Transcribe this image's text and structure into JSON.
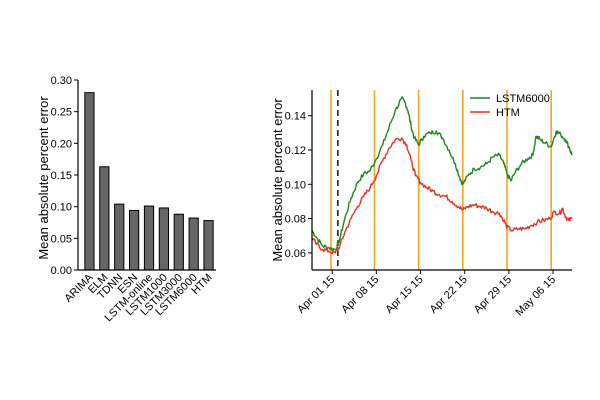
{
  "chart_data": [
    {
      "type": "bar",
      "title": "",
      "xlabel": "",
      "ylabel": "Mean absolute percent error",
      "ylim": [
        0,
        0.3
      ],
      "yticks": [
        "0.00",
        "0.05",
        "0.10",
        "0.15",
        "0.20",
        "0.25",
        "0.30"
      ],
      "yticks_values": [
        0,
        0.05,
        0.1,
        0.15,
        0.2,
        0.25,
        0.3
      ],
      "categories": [
        "ARIMA",
        "ELM",
        "TDNN",
        "ESN",
        "LSTM-online",
        "LSTM1000",
        "LSTM3000",
        "LSTM6000",
        "HTM"
      ],
      "values": [
        0.28,
        0.163,
        0.104,
        0.094,
        0.101,
        0.098,
        0.088,
        0.082,
        0.078
      ],
      "bar_color": "#666666"
    },
    {
      "type": "line",
      "title": "",
      "xlabel": "",
      "ylabel": "Mean absolute percent error",
      "ylim": [
        0.05,
        0.155
      ],
      "yticks": [
        "0.06",
        "0.08",
        "0.10",
        "0.12",
        "0.14"
      ],
      "yticks_values": [
        0.06,
        0.08,
        0.1,
        0.12,
        0.14
      ],
      "xlim": [
        -3.2,
        38
      ],
      "xticks": [
        "Apr 01 15",
        "Apr 08 15",
        "Apr 15 15",
        "Apr 22 15",
        "Apr 29 15",
        "May 06 15"
      ],
      "xticks_values": [
        0,
        7,
        14,
        21,
        28,
        35
      ],
      "legend_position": "top-right",
      "vlines_solid_days": [
        -0.2,
        6.7,
        13.7,
        20.7,
        27.7,
        34.7
      ],
      "vline_dashed_day": 0.9,
      "vline_solid_color": "#f5a623",
      "vline_dashed_color": "#000000",
      "series": [
        {
          "name": "LSTM6000",
          "color": "#1a8a1a",
          "points": [
            [
              -3.2,
              0.073
            ],
            [
              -2.5,
              0.069
            ],
            [
              -1.5,
              0.064
            ],
            [
              -0.5,
              0.063
            ],
            [
              0.5,
              0.062
            ],
            [
              1.2,
              0.068
            ],
            [
              2,
              0.08
            ],
            [
              3,
              0.092
            ],
            [
              4,
              0.101
            ],
            [
              5,
              0.106
            ],
            [
              6,
              0.108
            ],
            [
              7,
              0.115
            ],
            [
              8,
              0.123
            ],
            [
              9,
              0.133
            ],
            [
              10,
              0.143
            ],
            [
              11,
              0.15
            ],
            [
              11.5,
              0.148
            ],
            [
              12,
              0.143
            ],
            [
              12.5,
              0.134
            ],
            [
              13,
              0.127
            ],
            [
              13.7,
              0.123
            ],
            [
              14.5,
              0.128
            ],
            [
              15.5,
              0.13
            ],
            [
              16.5,
              0.131
            ],
            [
              17.5,
              0.127
            ],
            [
              18.5,
              0.12
            ],
            [
              19.5,
              0.112
            ],
            [
              20.2,
              0.104
            ],
            [
              20.7,
              0.1
            ],
            [
              21.5,
              0.105
            ],
            [
              22.5,
              0.109
            ],
            [
              23.5,
              0.11
            ],
            [
              24.5,
              0.112
            ],
            [
              25.5,
              0.116
            ],
            [
              26.5,
              0.117
            ],
            [
              27.2,
              0.112
            ],
            [
              27.7,
              0.106
            ],
            [
              28.3,
              0.102
            ],
            [
              29,
              0.107
            ],
            [
              30,
              0.112
            ],
            [
              31,
              0.115
            ],
            [
              31.8,
              0.117
            ],
            [
              32.3,
              0.128
            ],
            [
              33,
              0.126
            ],
            [
              33.8,
              0.124
            ],
            [
              34.7,
              0.122
            ],
            [
              35.5,
              0.131
            ],
            [
              36.2,
              0.129
            ],
            [
              37,
              0.126
            ],
            [
              37.6,
              0.121
            ],
            [
              38,
              0.117
            ]
          ]
        },
        {
          "name": "HTM",
          "color": "#e8321e",
          "points": [
            [
              -3.2,
              0.069
            ],
            [
              -2.5,
              0.065
            ],
            [
              -1.5,
              0.062
            ],
            [
              -0.5,
              0.061
            ],
            [
              0.5,
              0.06
            ],
            [
              1.2,
              0.064
            ],
            [
              2,
              0.072
            ],
            [
              3,
              0.08
            ],
            [
              4,
              0.087
            ],
            [
              5,
              0.093
            ],
            [
              6,
              0.098
            ],
            [
              7,
              0.105
            ],
            [
              8,
              0.114
            ],
            [
              9,
              0.121
            ],
            [
              10,
              0.126
            ],
            [
              11,
              0.127
            ],
            [
              11.8,
              0.123
            ],
            [
              12.5,
              0.114
            ],
            [
              13.2,
              0.105
            ],
            [
              14,
              0.101
            ],
            [
              15,
              0.098
            ],
            [
              16,
              0.096
            ],
            [
              17,
              0.094
            ],
            [
              18,
              0.093
            ],
            [
              19,
              0.09
            ],
            [
              20,
              0.087
            ],
            [
              20.7,
              0.085
            ],
            [
              21.5,
              0.087
            ],
            [
              22.5,
              0.088
            ],
            [
              23.5,
              0.087
            ],
            [
              24.5,
              0.086
            ],
            [
              25.5,
              0.084
            ],
            [
              26.5,
              0.083
            ],
            [
              27.2,
              0.079
            ],
            [
              27.7,
              0.075
            ],
            [
              28.5,
              0.073
            ],
            [
              29.5,
              0.074
            ],
            [
              30.5,
              0.074
            ],
            [
              31.5,
              0.076
            ],
            [
              32.5,
              0.078
            ],
            [
              33.5,
              0.079
            ],
            [
              34.5,
              0.08
            ],
            [
              35.2,
              0.084
            ],
            [
              36,
              0.083
            ],
            [
              36.5,
              0.086
            ],
            [
              37,
              0.081
            ],
            [
              37.5,
              0.079
            ],
            [
              38,
              0.08
            ]
          ]
        }
      ]
    }
  ]
}
